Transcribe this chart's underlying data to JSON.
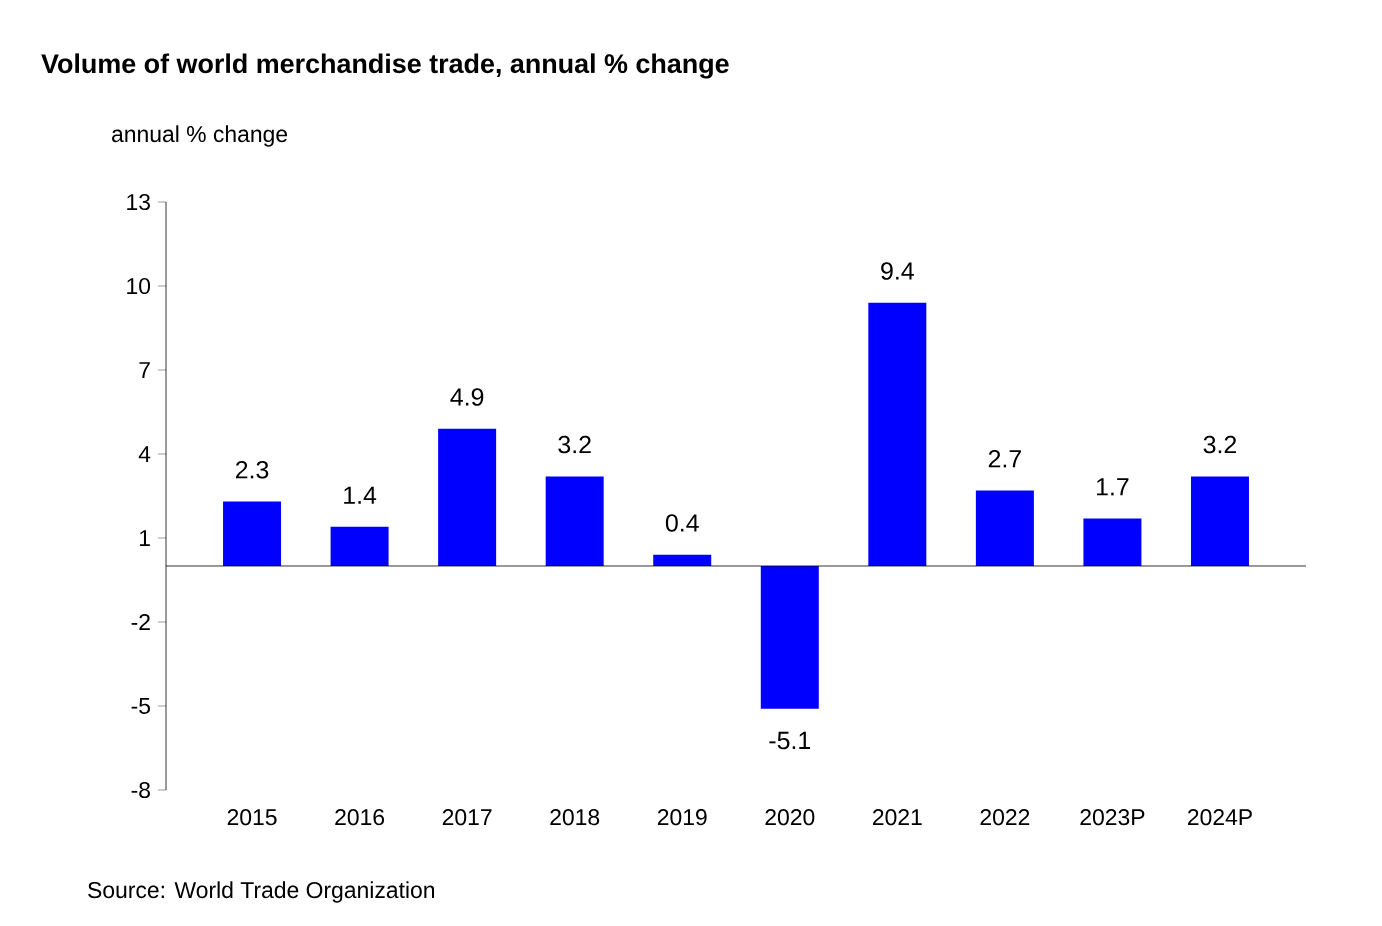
{
  "chart_data": {
    "type": "bar",
    "title": "Volume of world merchandise trade, annual % change",
    "ylabel": "annual % change",
    "categories": [
      "2015",
      "2016",
      "2017",
      "2018",
      "2019",
      "2020",
      "2021",
      "2022",
      "2023P",
      "2024P"
    ],
    "values": [
      2.3,
      1.4,
      4.9,
      3.2,
      0.4,
      -5.1,
      9.4,
      2.7,
      1.7,
      3.2
    ],
    "color": "#0000ff",
    "data_labels": true,
    "ylim": [
      -8,
      13
    ],
    "yticks": [
      13,
      10,
      7,
      4,
      1,
      -2,
      -5,
      -8
    ],
    "annotations": [
      "Source: World Trade Organization"
    ]
  }
}
